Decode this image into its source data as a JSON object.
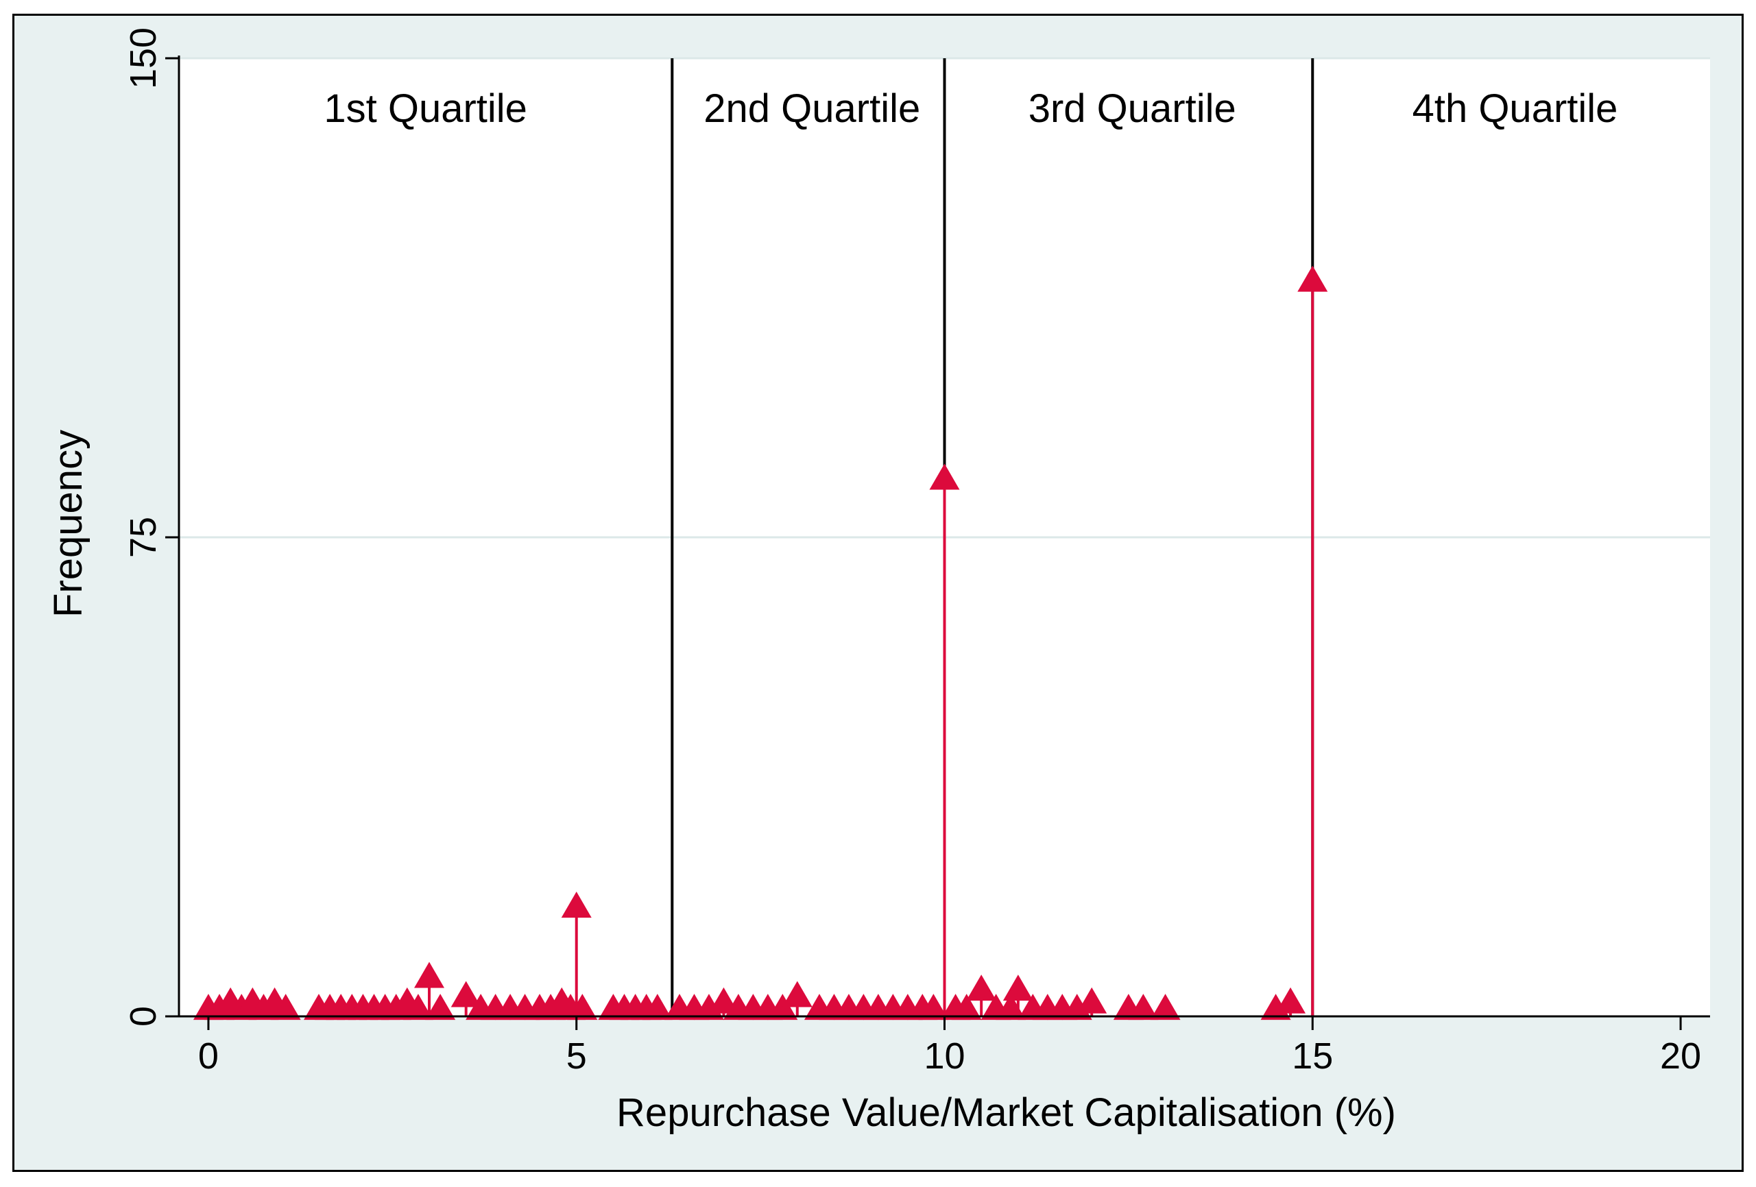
{
  "chart_data": {
    "type": "scatter",
    "subtype": "spike-plot",
    "title": "",
    "xlabel": "Repurchase Value/Market Capitalisation (%)",
    "ylabel": "Frequency",
    "xlim": [
      -0.4,
      20.4
    ],
    "ylim": [
      0,
      150
    ],
    "x_ticks": [
      0,
      5,
      10,
      15,
      20
    ],
    "y_ticks": [
      0,
      75,
      150
    ],
    "grid": true,
    "legend": "none",
    "colors": {
      "marker": "#dc0a3c",
      "frame_background": "#e8f1f1",
      "plot_background": "#ffffff",
      "gridline": "#dce8e8"
    },
    "quartile_boundaries": [
      6.3,
      10,
      15
    ],
    "quartile_labels": [
      {
        "text": "1st Quartile",
        "x": 2.95
      },
      {
        "text": "2nd Quartile",
        "x": 8.2
      },
      {
        "text": "3rd Quartile",
        "x": 12.55
      },
      {
        "text": "4th Quartile",
        "x": 17.75
      }
    ],
    "marker": "triangle",
    "points": [
      {
        "x": 0.0,
        "y": 1
      },
      {
        "x": 0.15,
        "y": 1
      },
      {
        "x": 0.3,
        "y": 2
      },
      {
        "x": 0.45,
        "y": 1
      },
      {
        "x": 0.6,
        "y": 2
      },
      {
        "x": 0.75,
        "y": 1
      },
      {
        "x": 0.9,
        "y": 2
      },
      {
        "x": 1.05,
        "y": 1
      },
      {
        "x": 1.5,
        "y": 1
      },
      {
        "x": 1.65,
        "y": 1
      },
      {
        "x": 1.8,
        "y": 1
      },
      {
        "x": 1.95,
        "y": 1
      },
      {
        "x": 2.1,
        "y": 1
      },
      {
        "x": 2.25,
        "y": 1
      },
      {
        "x": 2.4,
        "y": 1
      },
      {
        "x": 2.55,
        "y": 1
      },
      {
        "x": 2.7,
        "y": 2
      },
      {
        "x": 2.85,
        "y": 1
      },
      {
        "x": 3.0,
        "y": 6
      },
      {
        "x": 3.15,
        "y": 1
      },
      {
        "x": 3.5,
        "y": 3
      },
      {
        "x": 3.7,
        "y": 1
      },
      {
        "x": 3.9,
        "y": 1
      },
      {
        "x": 4.1,
        "y": 1
      },
      {
        "x": 4.3,
        "y": 1
      },
      {
        "x": 4.5,
        "y": 1
      },
      {
        "x": 4.65,
        "y": 1
      },
      {
        "x": 4.8,
        "y": 2
      },
      {
        "x": 4.92,
        "y": 1
      },
      {
        "x": 5.0,
        "y": 17
      },
      {
        "x": 5.08,
        "y": 1
      },
      {
        "x": 5.5,
        "y": 1
      },
      {
        "x": 5.65,
        "y": 1
      },
      {
        "x": 5.8,
        "y": 1
      },
      {
        "x": 5.95,
        "y": 1
      },
      {
        "x": 6.1,
        "y": 1
      },
      {
        "x": 6.4,
        "y": 1
      },
      {
        "x": 6.6,
        "y": 1
      },
      {
        "x": 6.8,
        "y": 1
      },
      {
        "x": 7.0,
        "y": 2
      },
      {
        "x": 7.2,
        "y": 1
      },
      {
        "x": 7.4,
        "y": 1
      },
      {
        "x": 7.6,
        "y": 1
      },
      {
        "x": 7.8,
        "y": 1
      },
      {
        "x": 8.0,
        "y": 3
      },
      {
        "x": 8.3,
        "y": 1
      },
      {
        "x": 8.5,
        "y": 1
      },
      {
        "x": 8.7,
        "y": 1
      },
      {
        "x": 8.9,
        "y": 1
      },
      {
        "x": 9.1,
        "y": 1
      },
      {
        "x": 9.3,
        "y": 1
      },
      {
        "x": 9.5,
        "y": 1
      },
      {
        "x": 9.7,
        "y": 1
      },
      {
        "x": 9.85,
        "y": 1
      },
      {
        "x": 10.0,
        "y": 84
      },
      {
        "x": 10.15,
        "y": 1
      },
      {
        "x": 10.3,
        "y": 1
      },
      {
        "x": 10.5,
        "y": 4
      },
      {
        "x": 10.7,
        "y": 1
      },
      {
        "x": 10.9,
        "y": 1
      },
      {
        "x": 11.0,
        "y": 4
      },
      {
        "x": 11.2,
        "y": 1
      },
      {
        "x": 11.4,
        "y": 1
      },
      {
        "x": 11.6,
        "y": 1
      },
      {
        "x": 11.8,
        "y": 1
      },
      {
        "x": 12.0,
        "y": 2
      },
      {
        "x": 12.5,
        "y": 1
      },
      {
        "x": 12.7,
        "y": 1
      },
      {
        "x": 13.0,
        "y": 1
      },
      {
        "x": 14.5,
        "y": 1
      },
      {
        "x": 14.7,
        "y": 2
      },
      {
        "x": 15.0,
        "y": 115
      }
    ]
  }
}
